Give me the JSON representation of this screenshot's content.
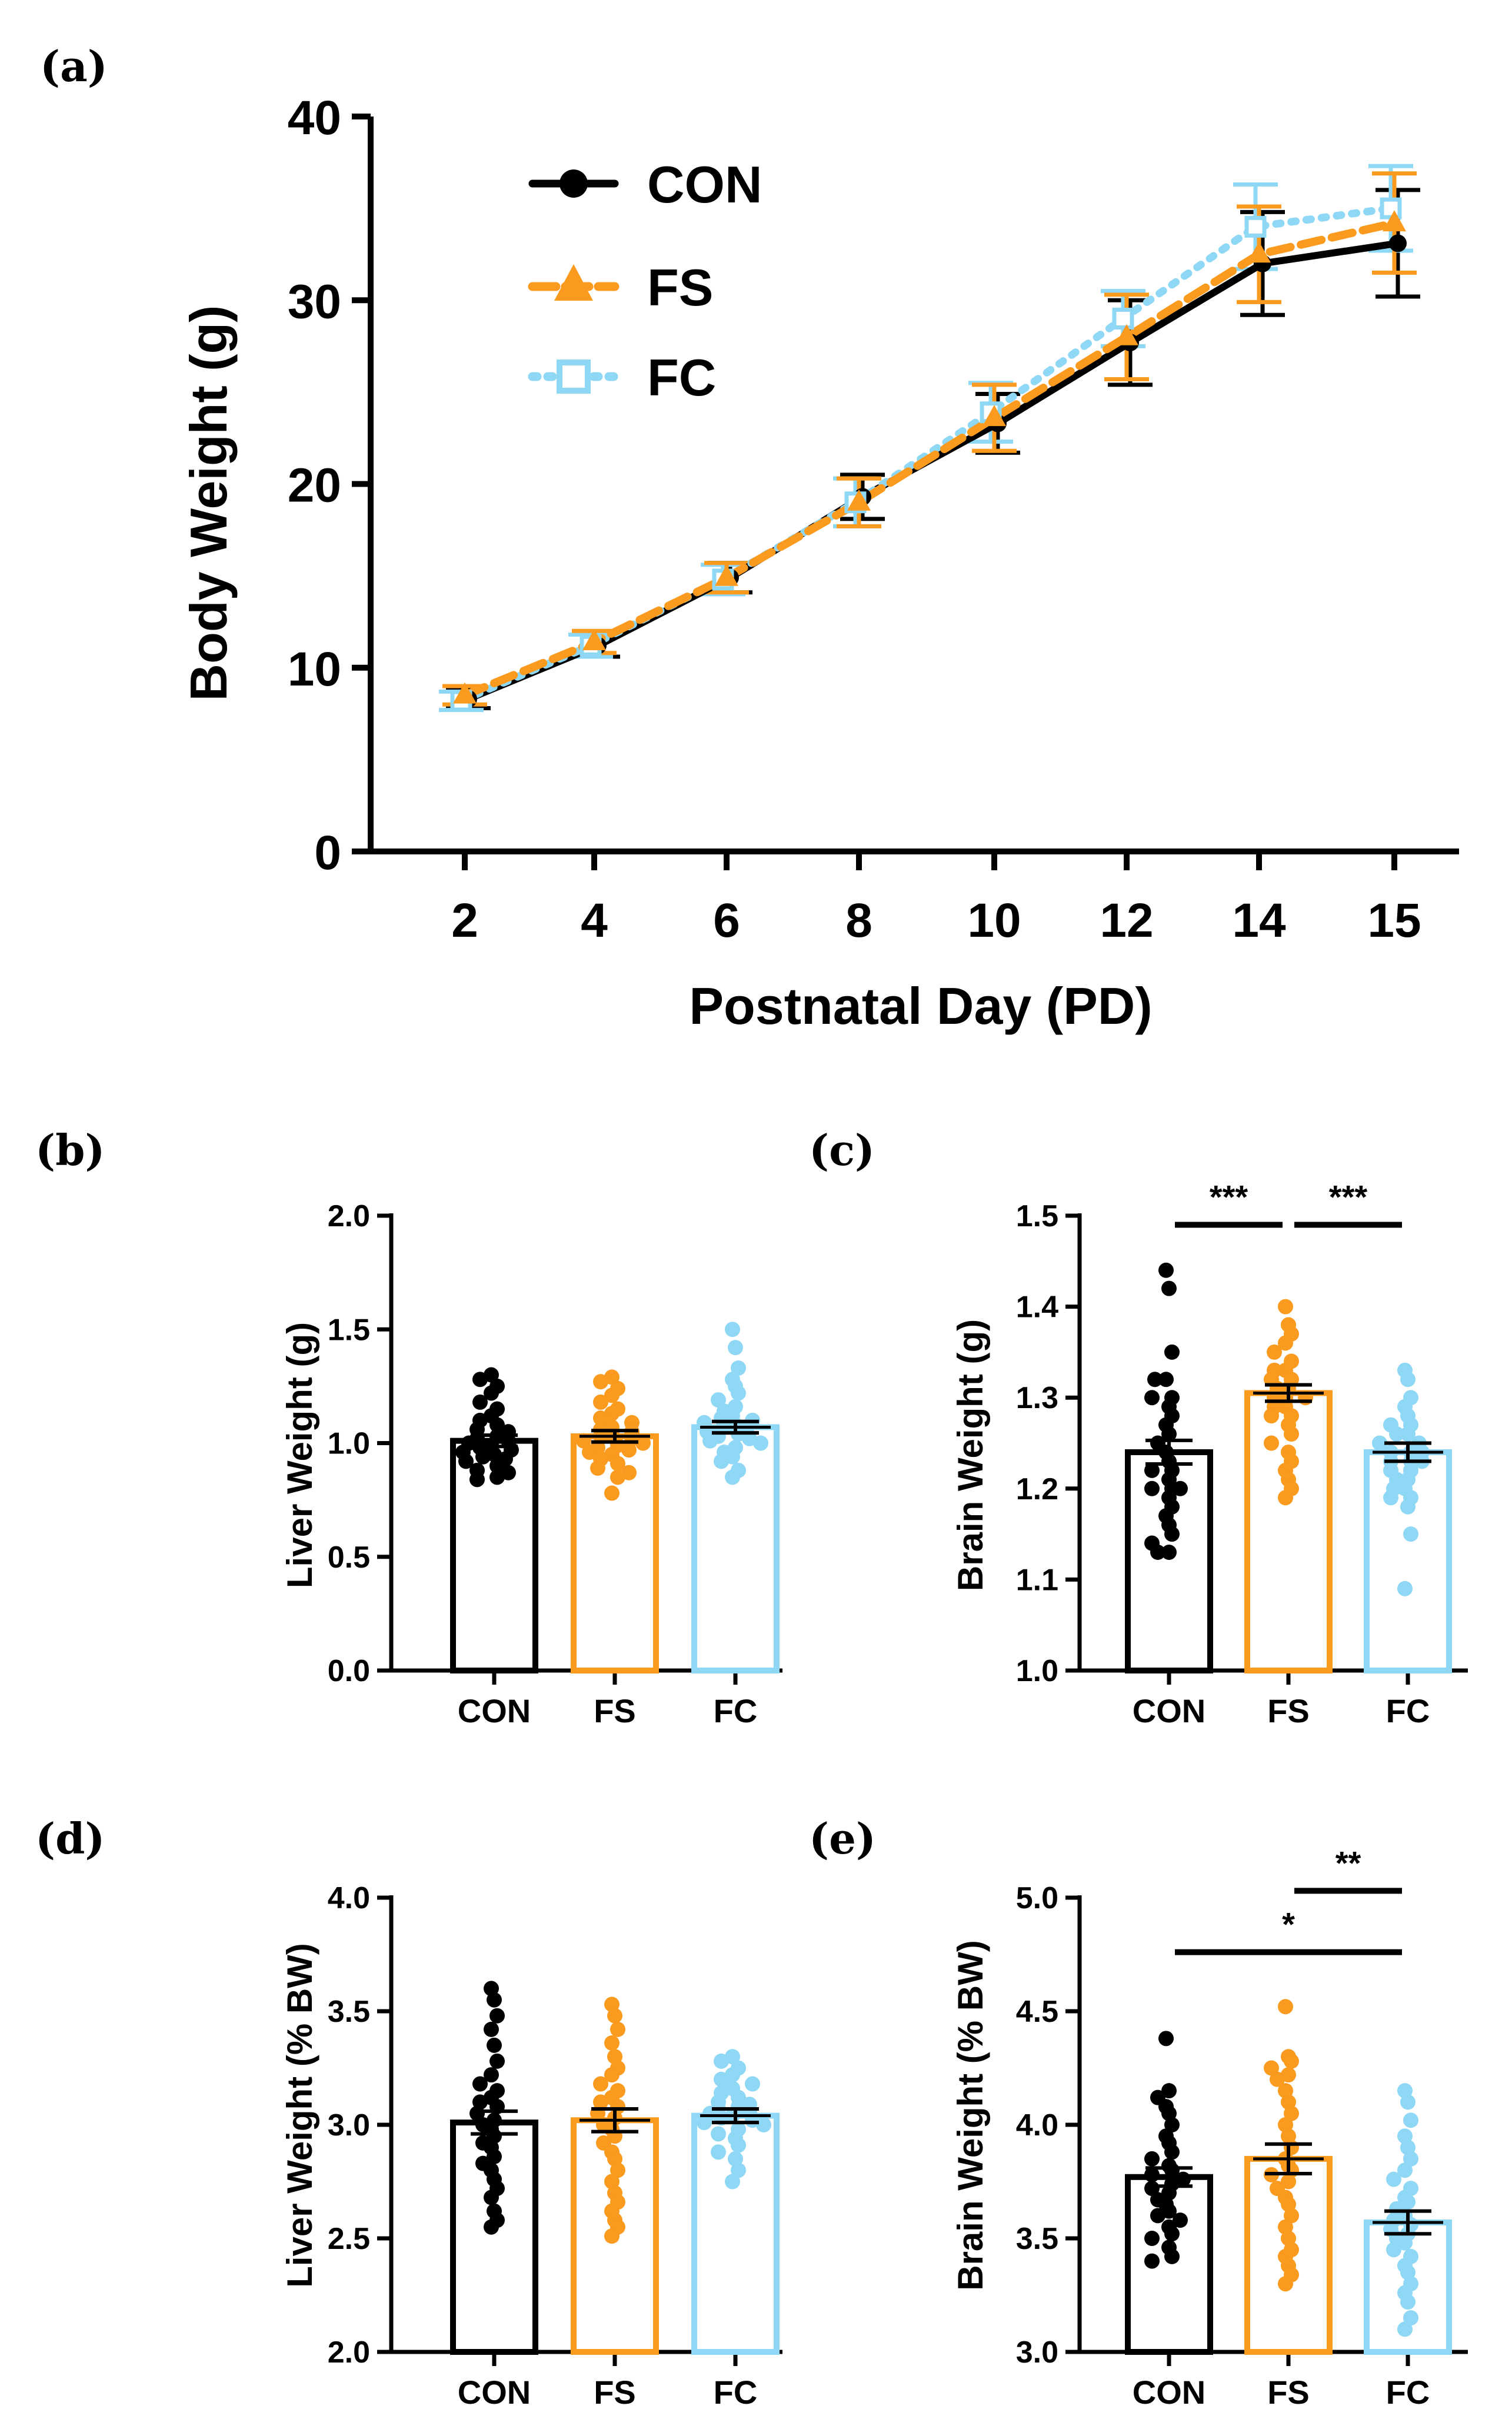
{
  "colors": {
    "CON": "#000000",
    "FS": "#FA9A1E",
    "FC": "#8FD8F5"
  },
  "chart_data": [
    {
      "panel": "(a)",
      "type": "line",
      "xlabel": "Postnatal Day (PD)",
      "ylabel": "Body Weight (g)",
      "ylim": [
        0,
        40
      ],
      "yticks": [
        0,
        10,
        20,
        30,
        40
      ],
      "categories": [
        "2",
        "4",
        "6",
        "8",
        "10",
        "12",
        "14",
        "15"
      ],
      "legend": [
        "CON",
        "FS",
        "FC"
      ],
      "legend_position": "top-left",
      "series": [
        {
          "name": "CON",
          "values": [
            8.3,
            11.2,
            14.9,
            19.3,
            23.3,
            27.7,
            32.0,
            33.1
          ],
          "error": [
            0.5,
            0.6,
            0.8,
            1.2,
            1.6,
            2.3,
            2.8,
            2.9
          ]
        },
        {
          "name": "FS",
          "values": [
            8.5,
            11.4,
            14.9,
            19.0,
            23.6,
            28.0,
            32.5,
            34.2
          ],
          "error": [
            0.5,
            0.6,
            0.8,
            1.3,
            1.8,
            2.3,
            2.6,
            2.7
          ]
        },
        {
          "name": "FC",
          "values": [
            8.2,
            11.2,
            14.8,
            19.0,
            23.9,
            29.0,
            34.0,
            35.0
          ],
          "error": [
            0.5,
            0.6,
            0.8,
            1.3,
            1.6,
            1.5,
            2.3,
            2.3
          ]
        }
      ]
    },
    {
      "panel": "(b)",
      "type": "bar",
      "ylabel": "Liver Weight (g)",
      "ylim": [
        0,
        2.0
      ],
      "yticks": [
        "0.0",
        "0.5",
        "1.0",
        "1.5",
        "2.0"
      ],
      "categories": [
        "CON",
        "FS",
        "FC"
      ],
      "values": [
        1.01,
        1.03,
        1.07
      ],
      "sem": [
        0.025,
        0.025,
        0.025
      ],
      "points": [
        [
          1.3,
          1.28,
          1.25,
          1.22,
          1.18,
          1.15,
          1.12,
          1.1,
          1.08,
          1.06,
          1.05,
          1.03,
          1.02,
          1.01,
          1.0,
          0.99,
          0.98,
          0.97,
          0.96,
          0.95,
          0.94,
          0.93,
          0.92,
          0.9,
          0.88,
          0.87,
          0.85,
          0.84
        ],
        [
          1.29,
          1.27,
          1.24,
          1.21,
          1.18,
          1.15,
          1.13,
          1.11,
          1.09,
          1.07,
          1.06,
          1.05,
          1.04,
          1.03,
          1.02,
          1.01,
          1.0,
          0.99,
          0.98,
          0.97,
          0.96,
          0.95,
          0.93,
          0.91,
          0.89,
          0.87,
          0.85,
          0.78
        ],
        [
          1.5,
          1.42,
          1.33,
          1.28,
          1.25,
          1.22,
          1.19,
          1.16,
          1.14,
          1.12,
          1.11,
          1.1,
          1.09,
          1.08,
          1.07,
          1.06,
          1.05,
          1.04,
          1.03,
          1.02,
          1.01,
          1.0,
          0.98,
          0.96,
          0.94,
          0.92,
          0.88,
          0.85
        ]
      ],
      "significance": []
    },
    {
      "panel": "(c)",
      "type": "bar",
      "ylabel": "Brain Weight (g)",
      "ylim": [
        1.0,
        1.5
      ],
      "yticks": [
        "1.0",
        "1.1",
        "1.2",
        "1.3",
        "1.4",
        "1.5"
      ],
      "categories": [
        "CON",
        "FS",
        "FC"
      ],
      "values": [
        1.24,
        1.305,
        1.24
      ],
      "sem": [
        0.013,
        0.009,
        0.01
      ],
      "points": [
        [
          1.44,
          1.42,
          1.35,
          1.32,
          1.32,
          1.3,
          1.3,
          1.29,
          1.28,
          1.27,
          1.26,
          1.25,
          1.24,
          1.23,
          1.22,
          1.22,
          1.21,
          1.2,
          1.2,
          1.19,
          1.18,
          1.17,
          1.16,
          1.15,
          1.14,
          1.13,
          1.13,
          1.2
        ],
        [
          1.4,
          1.38,
          1.37,
          1.36,
          1.35,
          1.34,
          1.33,
          1.33,
          1.32,
          1.32,
          1.31,
          1.31,
          1.3,
          1.3,
          1.3,
          1.29,
          1.29,
          1.28,
          1.28,
          1.27,
          1.26,
          1.25,
          1.24,
          1.23,
          1.22,
          1.21,
          1.2,
          1.19
        ],
        [
          1.33,
          1.32,
          1.3,
          1.29,
          1.28,
          1.27,
          1.27,
          1.26,
          1.26,
          1.25,
          1.25,
          1.24,
          1.24,
          1.24,
          1.23,
          1.23,
          1.23,
          1.22,
          1.22,
          1.21,
          1.21,
          1.2,
          1.2,
          1.19,
          1.19,
          1.18,
          1.15,
          1.09
        ]
      ],
      "significance": [
        {
          "from": 0,
          "to": 1,
          "y": 1.49,
          "label": "***"
        },
        {
          "from": 1,
          "to": 2,
          "y": 1.49,
          "label": "***"
        }
      ]
    },
    {
      "panel": "(d)",
      "type": "bar",
      "ylabel": "Liver Weight (% BW)",
      "ylim": [
        2.0,
        4.0
      ],
      "yticks": [
        "2.0",
        "2.5",
        "3.0",
        "3.5",
        "4.0"
      ],
      "categories": [
        "CON",
        "FS",
        "FC"
      ],
      "values": [
        3.01,
        3.02,
        3.04
      ],
      "sem": [
        0.05,
        0.05,
        0.03
      ],
      "points": [
        [
          3.6,
          3.55,
          3.48,
          3.42,
          3.35,
          3.28,
          3.22,
          3.18,
          3.15,
          3.12,
          3.1,
          3.08,
          3.05,
          3.02,
          3.0,
          2.98,
          2.95,
          2.92,
          2.9,
          2.86,
          2.83,
          2.8,
          2.76,
          2.72,
          2.68,
          2.62,
          2.58,
          2.55
        ],
        [
          3.53,
          3.48,
          3.42,
          3.36,
          3.3,
          3.25,
          3.22,
          3.18,
          3.15,
          3.12,
          3.1,
          3.08,
          3.05,
          3.03,
          3.0,
          2.98,
          2.95,
          2.92,
          2.88,
          2.85,
          2.8,
          2.75,
          2.7,
          2.66,
          2.62,
          2.58,
          2.55,
          2.51
        ],
        [
          3.3,
          3.28,
          3.25,
          3.22,
          3.2,
          3.18,
          3.16,
          3.14,
          3.12,
          3.1,
          3.09,
          3.08,
          3.07,
          3.06,
          3.05,
          3.04,
          3.03,
          3.02,
          3.01,
          3.0,
          2.98,
          2.96,
          2.94,
          2.91,
          2.88,
          2.85,
          2.8,
          2.75
        ]
      ],
      "significance": []
    },
    {
      "panel": "(e)",
      "type": "bar",
      "ylabel": "Brain Weight (% BW)",
      "ylim": [
        3.0,
        5.0
      ],
      "yticks": [
        "3.0",
        "3.5",
        "4.0",
        "4.5",
        "5.0"
      ],
      "categories": [
        "CON",
        "FS",
        "FC"
      ],
      "values": [
        3.77,
        3.85,
        3.57
      ],
      "sem": [
        0.04,
        0.065,
        0.05
      ],
      "points": [
        [
          4.38,
          4.15,
          4.12,
          4.08,
          4.05,
          4.0,
          3.95,
          3.92,
          3.88,
          3.85,
          3.82,
          3.8,
          3.78,
          3.76,
          3.74,
          3.72,
          3.7,
          3.67,
          3.65,
          3.62,
          3.6,
          3.58,
          3.55,
          3.52,
          3.5,
          3.46,
          3.42,
          3.4
        ],
        [
          4.52,
          4.3,
          4.28,
          4.25,
          4.22,
          4.2,
          4.15,
          4.1,
          4.05,
          4.0,
          3.95,
          3.9,
          3.85,
          3.82,
          3.8,
          3.78,
          3.75,
          3.72,
          3.68,
          3.65,
          3.6,
          3.55,
          3.5,
          3.45,
          3.42,
          3.38,
          3.34,
          3.3
        ],
        [
          4.15,
          4.1,
          4.02,
          3.95,
          3.9,
          3.85,
          3.8,
          3.76,
          3.72,
          3.68,
          3.66,
          3.63,
          3.6,
          3.58,
          3.56,
          3.54,
          3.52,
          3.5,
          3.48,
          3.45,
          3.42,
          3.38,
          3.35,
          3.3,
          3.26,
          3.22,
          3.15,
          3.1
        ]
      ],
      "significance": [
        {
          "from": 1,
          "to": 2,
          "y": 5.03,
          "label": "**"
        },
        {
          "from": 0,
          "to": 2,
          "y": 4.76,
          "label": "*"
        }
      ]
    }
  ]
}
